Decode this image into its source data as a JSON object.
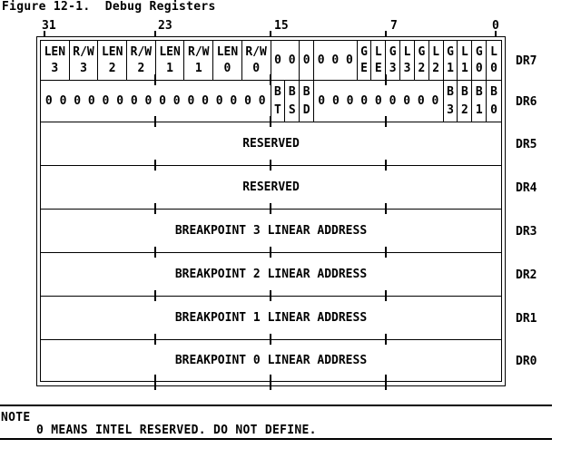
{
  "figure": {
    "title": "Figure 12-1.  Debug Registers"
  },
  "bit_scale": {
    "labels": [
      "31",
      "23",
      "15",
      "7",
      "0"
    ]
  },
  "registers": [
    {
      "name": "DR7",
      "cells": [
        {
          "bits": 2,
          "lines": [
            "LEN",
            "3"
          ]
        },
        {
          "bits": 2,
          "lines": [
            "R/W",
            "3"
          ]
        },
        {
          "bits": 2,
          "lines": [
            "LEN",
            "2"
          ]
        },
        {
          "bits": 2,
          "lines": [
            "R/W",
            "2"
          ]
        },
        {
          "bits": 2,
          "lines": [
            "LEN",
            "1"
          ]
        },
        {
          "bits": 2,
          "lines": [
            "R/W",
            "1"
          ]
        },
        {
          "bits": 2,
          "lines": [
            "LEN",
            "0"
          ]
        },
        {
          "bits": 2,
          "lines": [
            "R/W",
            "0"
          ]
        },
        {
          "bits": 2,
          "lines": [
            "0 0"
          ]
        },
        {
          "bits": 1,
          "lines": [
            "0"
          ]
        },
        {
          "bits": 3,
          "lines": [
            "0 0 0"
          ]
        },
        {
          "bits": 1,
          "lines": [
            "G",
            "E"
          ]
        },
        {
          "bits": 1,
          "lines": [
            "L",
            "E"
          ]
        },
        {
          "bits": 1,
          "lines": [
            "G",
            "3"
          ]
        },
        {
          "bits": 1,
          "lines": [
            "L",
            "3"
          ]
        },
        {
          "bits": 1,
          "lines": [
            "G",
            "2"
          ]
        },
        {
          "bits": 1,
          "lines": [
            "L",
            "2"
          ]
        },
        {
          "bits": 1,
          "lines": [
            "G",
            "1"
          ]
        },
        {
          "bits": 1,
          "lines": [
            "L",
            "1"
          ]
        },
        {
          "bits": 1,
          "lines": [
            "G",
            "0"
          ]
        },
        {
          "bits": 1,
          "lines": [
            "L",
            "0"
          ]
        }
      ]
    },
    {
      "name": "DR6",
      "cells": [
        {
          "bits": 16,
          "lines": [
            "0 0 0 0 0 0 0 0 0 0 0 0 0 0 0 0"
          ]
        },
        {
          "bits": 1,
          "lines": [
            "B",
            "T"
          ]
        },
        {
          "bits": 1,
          "lines": [
            "B",
            "S"
          ]
        },
        {
          "bits": 1,
          "lines": [
            "B",
            "D"
          ]
        },
        {
          "bits": 9,
          "lines": [
            "0 0 0 0 0 0 0 0 0"
          ]
        },
        {
          "bits": 1,
          "lines": [
            "B",
            "3"
          ]
        },
        {
          "bits": 1,
          "lines": [
            "B",
            "2"
          ]
        },
        {
          "bits": 1,
          "lines": [
            "B",
            "1"
          ]
        },
        {
          "bits": 1,
          "lines": [
            "B",
            "0"
          ]
        }
      ]
    },
    {
      "name": "DR5",
      "cells": [
        {
          "bits": 32,
          "lines": [
            "RESERVED"
          ]
        }
      ]
    },
    {
      "name": "DR4",
      "cells": [
        {
          "bits": 32,
          "lines": [
            "RESERVED"
          ]
        }
      ]
    },
    {
      "name": "DR3",
      "cells": [
        {
          "bits": 32,
          "lines": [
            "BREAKPOINT 3 LINEAR ADDRESS"
          ]
        }
      ]
    },
    {
      "name": "DR2",
      "cells": [
        {
          "bits": 32,
          "lines": [
            "BREAKPOINT 2 LINEAR ADDRESS"
          ]
        }
      ]
    },
    {
      "name": "DR1",
      "cells": [
        {
          "bits": 32,
          "lines": [
            "BREAKPOINT 1 LINEAR ADDRESS"
          ]
        }
      ]
    },
    {
      "name": "DR0",
      "cells": [
        {
          "bits": 32,
          "lines": [
            "BREAKPOINT 0 LINEAR ADDRESS"
          ]
        }
      ]
    }
  ],
  "note": {
    "label": "NOTE",
    "text": "0 MEANS INTEL RESERVED. DO NOT DEFINE."
  },
  "colors": {
    "foreground": "#000000",
    "background": "#ffffff"
  }
}
